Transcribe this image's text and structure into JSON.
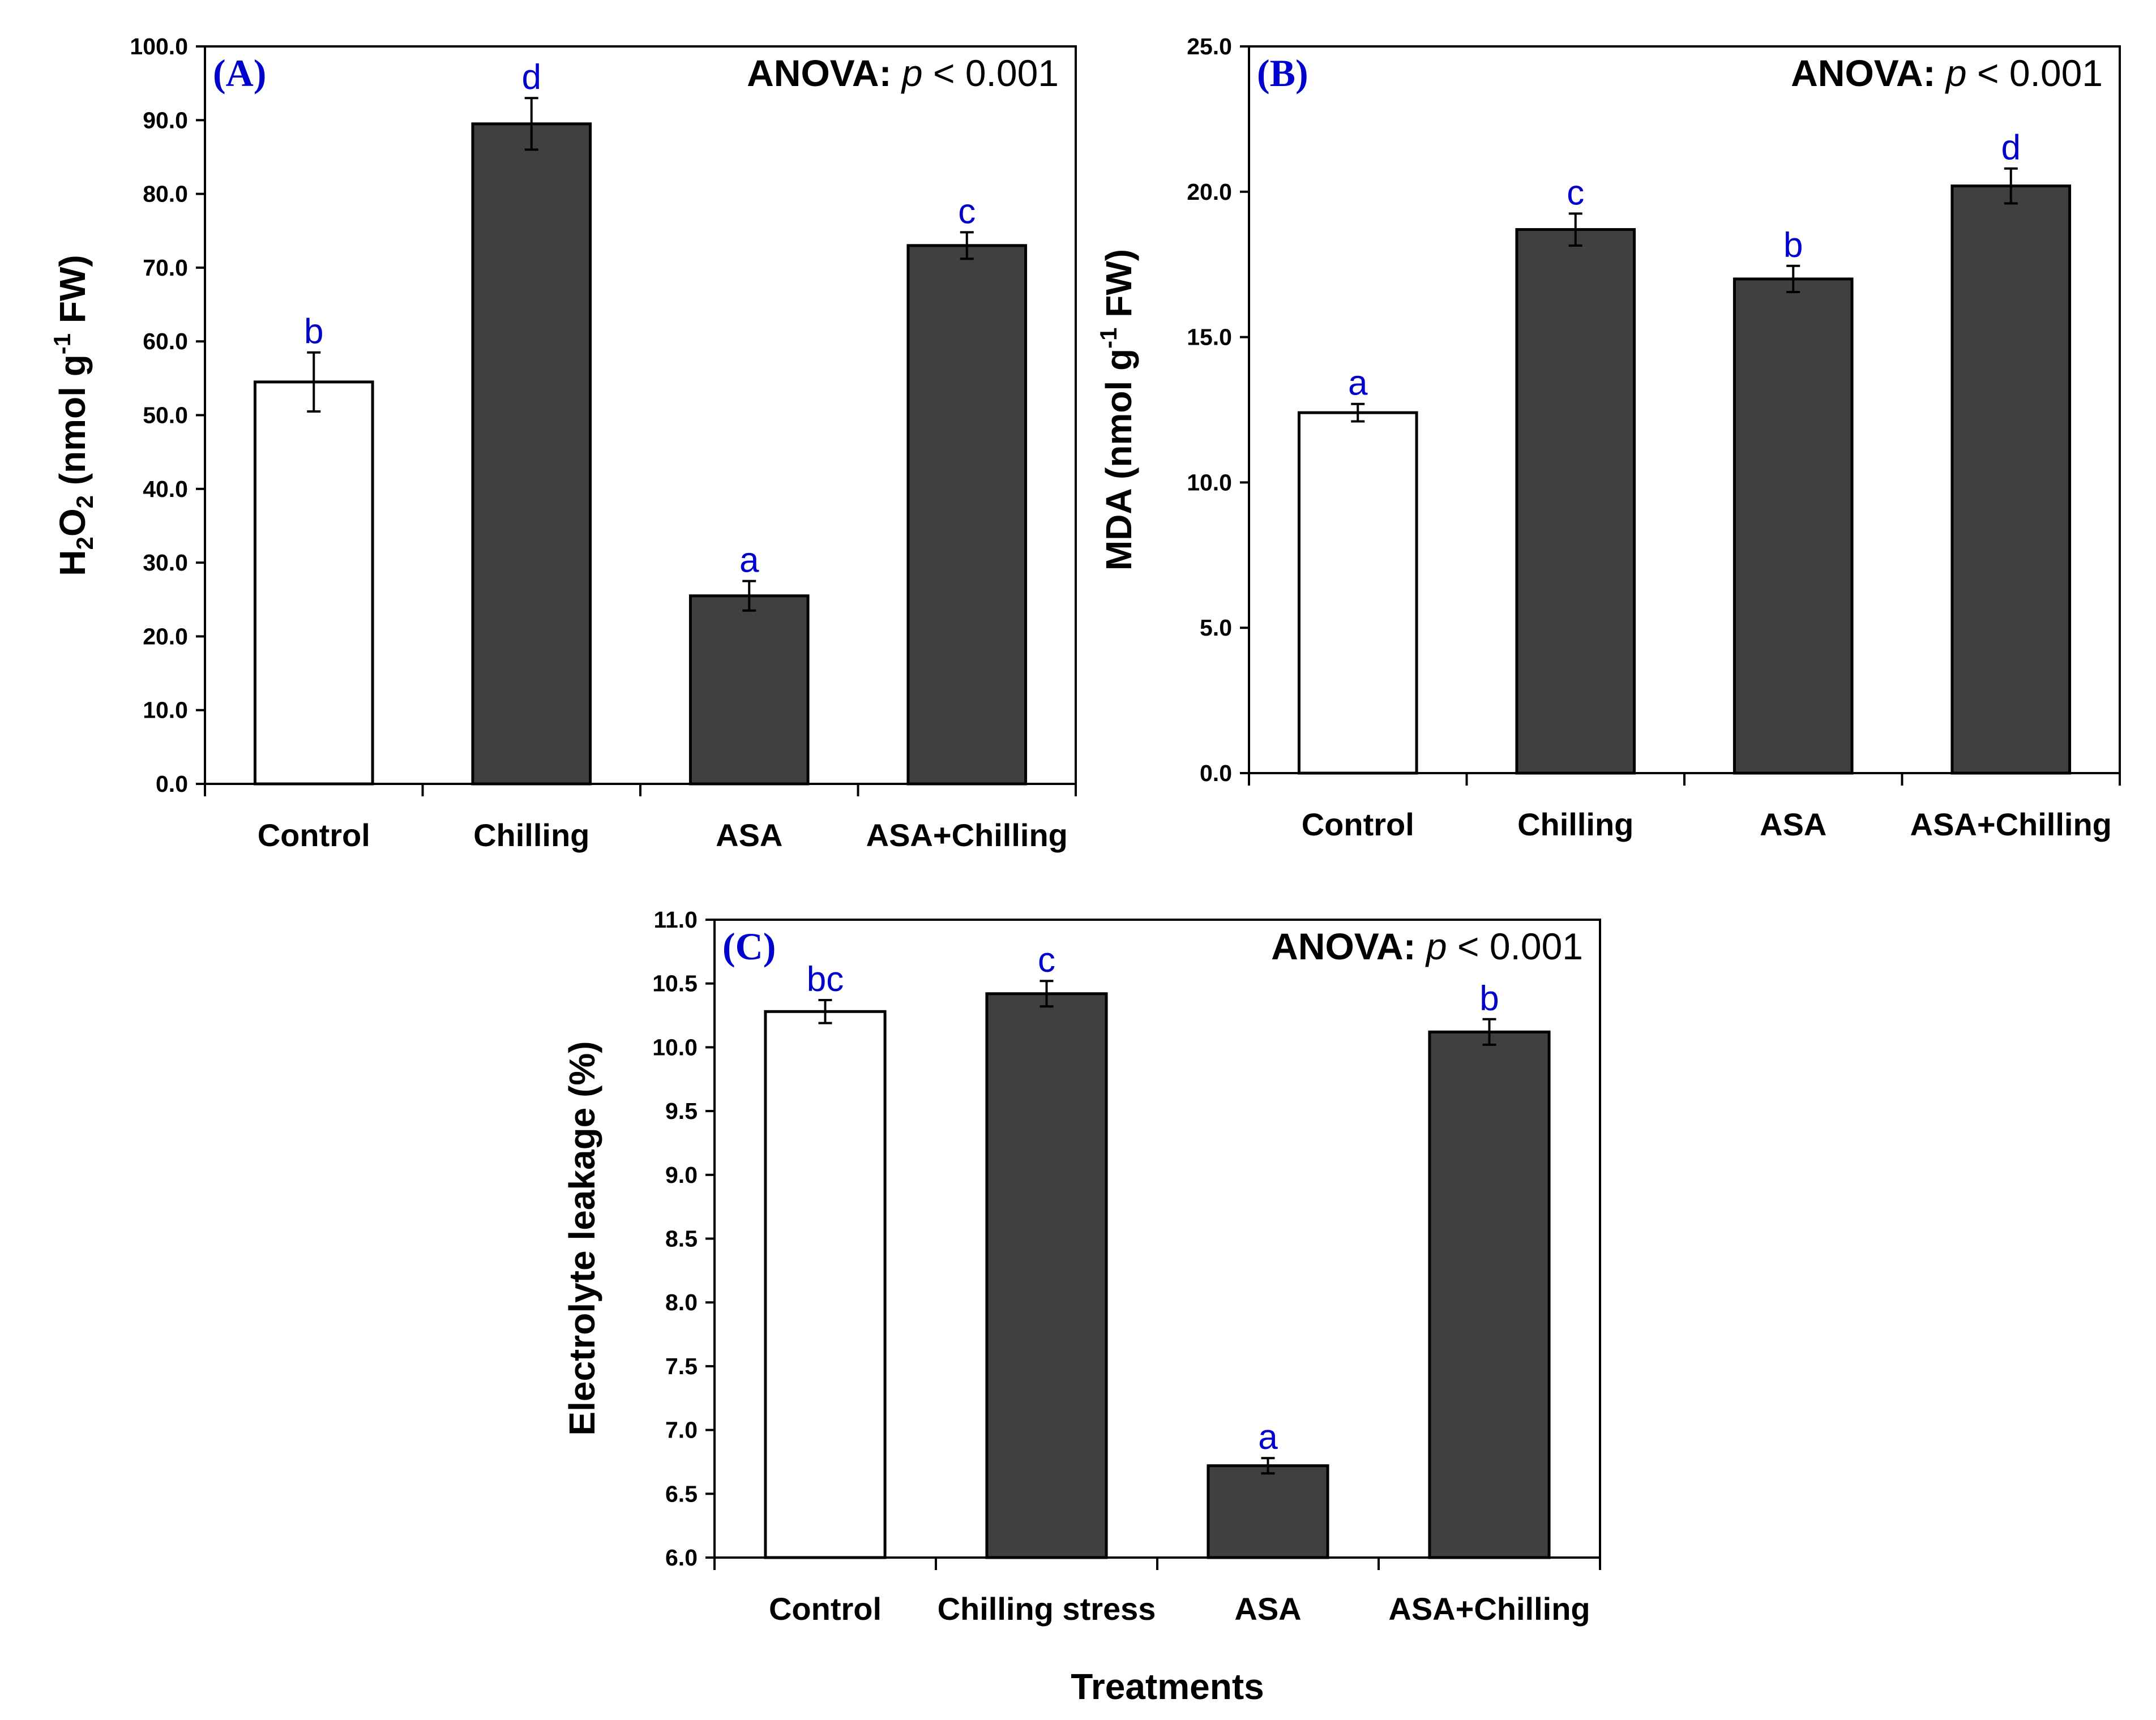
{
  "colors": {
    "bar_fill": "#404040",
    "control_fill": "#ffffff",
    "stroke": "#000000",
    "letters": "#0000cc",
    "panel_label": "#0000cc"
  },
  "x_axis_title": "Treatments",
  "chart_data": [
    {
      "type": "bar",
      "panel_label": "(A)",
      "anova": {
        "prefix": "ANOVA:",
        "p_symbol": "p",
        "suffix": "< 0.001"
      },
      "ylabel": {
        "main": "H",
        "sub1": "2",
        "mid": "O",
        "sub2": "2",
        "rest": " (nmol g",
        "sup": "-1",
        "end": " FW)"
      },
      "xlabel": "",
      "ylim": [
        0,
        100
      ],
      "ytick_step": 10,
      "ytick_decimals": 1,
      "categories": [
        "Control",
        "Chilling",
        "ASA",
        "ASA+Chilling"
      ],
      "values": [
        54.5,
        89.5,
        25.5,
        73.0
      ],
      "errors": [
        4.0,
        3.5,
        2.0,
        1.8
      ],
      "letters": [
        "b",
        "d",
        "a",
        "c"
      ]
    },
    {
      "type": "bar",
      "panel_label": "(B)",
      "anova": {
        "prefix": "ANOVA:",
        "p_symbol": "p",
        "suffix": "< 0.001"
      },
      "ylabel": {
        "main": "MDA (nmol g",
        "sup": "-1",
        "end": " FW)"
      },
      "xlabel": "",
      "ylim": [
        0,
        25
      ],
      "ytick_step": 5,
      "ytick_decimals": 1,
      "categories": [
        "Control",
        "Chilling",
        "ASA",
        "ASA+Chilling"
      ],
      "values": [
        12.4,
        18.7,
        17.0,
        20.2
      ],
      "errors": [
        0.3,
        0.55,
        0.45,
        0.6
      ],
      "letters": [
        "a",
        "c",
        "b",
        "d"
      ]
    },
    {
      "type": "bar",
      "panel_label": "(C)",
      "anova": {
        "prefix": "ANOVA:",
        "p_symbol": "p",
        "suffix": "< 0.001"
      },
      "ylabel": {
        "main": "Electrolyte leakage (%)"
      },
      "xlabel": "Treatments",
      "ylim": [
        6,
        11
      ],
      "ytick_step": 0.5,
      "ytick_decimals": 1,
      "categories": [
        "Control",
        "Chilling stress",
        "ASA",
        "ASA+Chilling"
      ],
      "values": [
        10.28,
        10.42,
        6.72,
        10.12
      ],
      "errors": [
        0.09,
        0.1,
        0.06,
        0.1
      ],
      "letters": [
        "bc",
        "c",
        "a",
        "b"
      ]
    }
  ]
}
